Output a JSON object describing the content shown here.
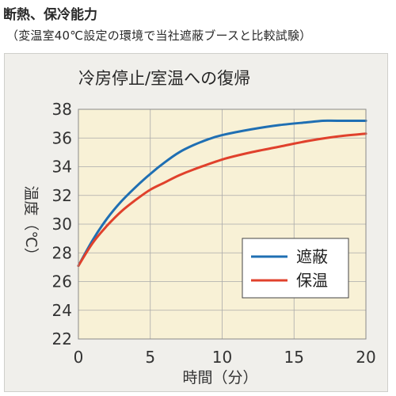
{
  "header": {
    "title": "断熱、保冷能力",
    "subtitle": "（変温室40℃設定の環境で当社遮蔽ブースと比較試験）"
  },
  "chart_data": {
    "type": "line",
    "title": "冷房停止/室温への復帰",
    "xlabel": "時間（分）",
    "ylabel": "温度（℃）",
    "xlim": [
      0,
      20
    ],
    "ylim": [
      22,
      38
    ],
    "xticks": [
      0,
      5,
      10,
      15,
      20
    ],
    "yticks": [
      22,
      24,
      26,
      28,
      30,
      32,
      34,
      36,
      38
    ],
    "grid": true,
    "legend_position": "bottom-right",
    "plot_background": "#f8f1d6",
    "series": [
      {
        "name": "遮蔽",
        "color": "#1f6fb3",
        "x": [
          0,
          1,
          2,
          3,
          4,
          5,
          6,
          7,
          8,
          9,
          10,
          12,
          14,
          16,
          17,
          18,
          20
        ],
        "y": [
          27.1,
          28.9,
          30.4,
          31.6,
          32.6,
          33.5,
          34.3,
          35.0,
          35.5,
          35.9,
          36.2,
          36.6,
          36.9,
          37.1,
          37.2,
          37.2,
          37.2
        ]
      },
      {
        "name": "保温",
        "color": "#e0412c",
        "x": [
          0,
          1,
          2,
          3,
          4,
          5,
          6,
          7,
          8,
          10,
          12,
          14,
          16,
          18,
          20
        ],
        "y": [
          27.1,
          28.7,
          29.9,
          30.9,
          31.7,
          32.4,
          32.9,
          33.4,
          33.8,
          34.5,
          35.0,
          35.4,
          35.8,
          36.1,
          36.3
        ]
      }
    ]
  }
}
